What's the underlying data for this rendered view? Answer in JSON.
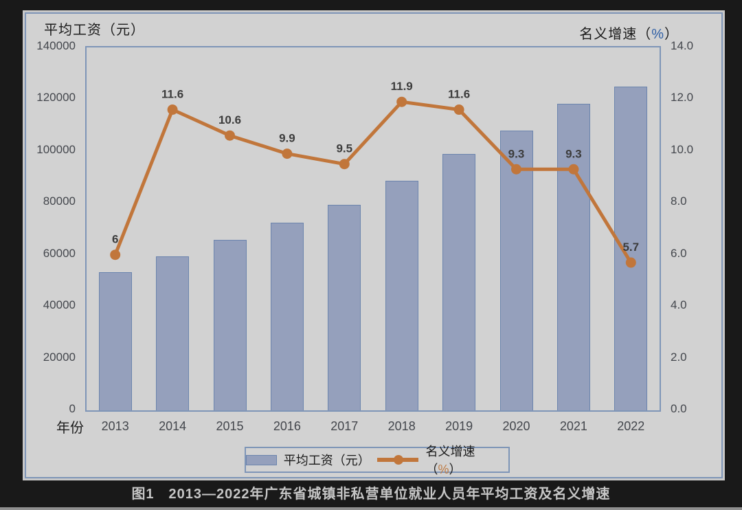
{
  "figure": {
    "caption": "图1　2013—2022年广东省城镇非私营单位就业人员年平均工资及名义增速"
  },
  "chart_data": {
    "type": "combo-bar-line",
    "categories": [
      "2013",
      "2014",
      "2015",
      "2016",
      "2017",
      "2018",
      "2019",
      "2020",
      "2021",
      "2022"
    ],
    "series": [
      {
        "name": "平均工资（元）",
        "type": "bar",
        "axis": "left",
        "values": [
          53318,
          59481,
          65788,
          72326,
          79183,
          88636,
          98889,
          108045,
          118133,
          124875
        ]
      },
      {
        "name": "名义增速（%）",
        "type": "line",
        "axis": "right",
        "values": [
          6,
          11.6,
          10.6,
          9.9,
          9.5,
          11.9,
          11.6,
          9.3,
          9.3,
          5.7
        ],
        "point_labels": [
          "6",
          "11.6",
          "10.6",
          "9.9",
          "9.5",
          "11.9",
          "11.6",
          "9.3",
          "9.3",
          "5.7"
        ]
      }
    ],
    "left_axis": {
      "title": "平均工资（元）",
      "min": 0,
      "max": 140000,
      "tick_step": 20000,
      "tick_labels": [
        "140000",
        "120000",
        "100000",
        "80000",
        "60000",
        "40000",
        "20000",
        "0"
      ]
    },
    "right_axis": {
      "title": "名义增速（%）",
      "min": 0,
      "max": 14,
      "tick_step": 2,
      "tick_labels": [
        "14.0",
        "12.0",
        "10.0",
        "8.0",
        "6.0",
        "4.0",
        "2.0",
        "0.0"
      ]
    },
    "x_axis": {
      "title": "年份"
    },
    "legend": {
      "position": "bottom",
      "items": [
        "平均工资（元）",
        "名义增速（%）"
      ]
    },
    "grid": false,
    "colors": {
      "bar_fill": "#95A0BC",
      "bar_border": "#6B84AD",
      "line": "#C1763B",
      "plot_border": "#7E95B7",
      "card_bg": "#D2D2D2",
      "page_bg": "#191919",
      "tick_text": "#43464C",
      "point_label_text": "#3C3C3C",
      "percent_glyph_title": "#2F5FA5",
      "percent_glyph_legend": "#BE7B44"
    }
  }
}
